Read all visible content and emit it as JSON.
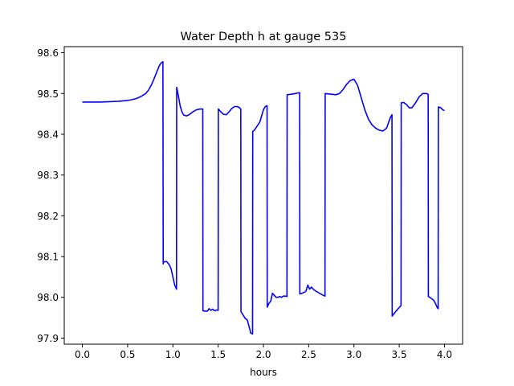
{
  "chart_data": {
    "type": "line",
    "title": "Water Depth h at gauge 535",
    "xlabel": "hours",
    "ylabel": "",
    "xlim": [
      -0.2,
      4.2
    ],
    "ylim": [
      97.885,
      98.615
    ],
    "xticks": [
      0.0,
      0.5,
      1.0,
      1.5,
      2.0,
      2.5,
      3.0,
      3.5,
      4.0
    ],
    "xtick_labels": [
      "0.0",
      "0.5",
      "1.0",
      "1.5",
      "2.0",
      "2.5",
      "3.0",
      "3.5",
      "4.0"
    ],
    "yticks": [
      97.9,
      98.0,
      98.1,
      98.2,
      98.3,
      98.4,
      98.5,
      98.6
    ],
    "ytick_labels": [
      "97.9",
      "98.0",
      "98.1",
      "98.2",
      "98.3",
      "98.4",
      "98.5",
      "98.6"
    ],
    "grid": false,
    "line_color": "#0000ff",
    "series": [
      {
        "x": [
          0.0,
          0.1,
          0.2,
          0.3,
          0.4,
          0.5,
          0.55,
          0.6,
          0.65,
          0.7,
          0.73,
          0.76,
          0.79,
          0.82,
          0.85,
          0.87,
          0.89,
          0.893,
          0.9,
          0.93,
          0.96,
          0.98,
          1.0,
          1.02,
          1.04,
          1.042,
          1.06,
          1.08,
          1.1,
          1.12,
          1.15,
          1.18,
          1.22,
          1.26,
          1.3,
          1.33,
          1.332,
          1.36,
          1.38,
          1.4,
          1.42,
          1.44,
          1.46,
          1.48,
          1.5,
          1.502,
          1.53,
          1.56,
          1.59,
          1.62,
          1.65,
          1.68,
          1.71,
          1.73,
          1.75,
          1.752,
          1.78,
          1.8,
          1.82,
          1.84,
          1.86,
          1.88,
          1.882,
          1.9,
          1.93,
          1.96,
          1.98,
          2.0,
          2.02,
          2.04,
          2.042,
          2.06,
          2.08,
          2.1,
          2.12,
          2.14,
          2.16,
          2.18,
          2.2,
          2.22,
          2.24,
          2.26,
          2.262,
          2.3,
          2.35,
          2.4,
          2.402,
          2.45,
          2.47,
          2.49,
          2.51,
          2.53,
          2.55,
          2.58,
          2.62,
          2.66,
          2.68,
          2.682,
          2.72,
          2.76,
          2.8,
          2.84,
          2.88,
          2.92,
          2.96,
          3.0,
          3.04,
          3.08,
          3.12,
          3.16,
          3.2,
          3.24,
          3.28,
          3.32,
          3.36,
          3.4,
          3.42,
          3.422,
          3.45,
          3.48,
          3.5,
          3.52,
          3.522,
          3.55,
          3.58,
          3.61,
          3.64,
          3.68,
          3.72,
          3.76,
          3.8,
          3.82,
          3.822,
          3.85,
          3.88,
          3.9,
          3.92,
          3.93,
          3.932,
          3.96,
          3.98,
          4.0
        ],
        "y": [
          98.479,
          98.479,
          98.479,
          98.48,
          98.481,
          98.483,
          98.485,
          98.488,
          98.493,
          98.5,
          98.508,
          98.52,
          98.535,
          98.552,
          98.568,
          98.575,
          98.578,
          98.082,
          98.087,
          98.088,
          98.08,
          98.07,
          98.05,
          98.03,
          98.02,
          98.515,
          98.495,
          98.47,
          98.455,
          98.447,
          98.445,
          98.448,
          98.455,
          98.46,
          98.462,
          98.462,
          97.967,
          97.966,
          97.966,
          97.972,
          97.968,
          97.971,
          97.967,
          97.969,
          97.968,
          98.462,
          98.455,
          98.449,
          98.448,
          98.455,
          98.463,
          98.468,
          98.468,
          98.466,
          98.462,
          97.965,
          97.955,
          97.948,
          97.945,
          97.93,
          97.912,
          97.91,
          98.407,
          98.41,
          98.42,
          98.43,
          98.445,
          98.46,
          98.468,
          98.47,
          97.976,
          97.985,
          97.99,
          98.01,
          98.005,
          98.0,
          98.0,
          98.002,
          98.0,
          98.003,
          98.003,
          98.002,
          98.497,
          98.498,
          98.5,
          98.502,
          98.008,
          98.012,
          98.015,
          98.03,
          98.02,
          98.025,
          98.02,
          98.015,
          98.01,
          98.005,
          98.003,
          98.5,
          98.499,
          98.498,
          98.497,
          98.5,
          98.51,
          98.523,
          98.532,
          98.535,
          98.52,
          98.49,
          98.46,
          98.437,
          98.423,
          98.415,
          98.41,
          98.408,
          98.415,
          98.44,
          98.448,
          97.954,
          97.962,
          97.97,
          97.975,
          97.98,
          98.477,
          98.478,
          98.473,
          98.465,
          98.465,
          98.477,
          98.492,
          98.5,
          98.5,
          98.498,
          98.002,
          97.998,
          97.993,
          97.985,
          97.975,
          97.972,
          98.467,
          98.465,
          98.46,
          98.458
        ]
      }
    ]
  }
}
